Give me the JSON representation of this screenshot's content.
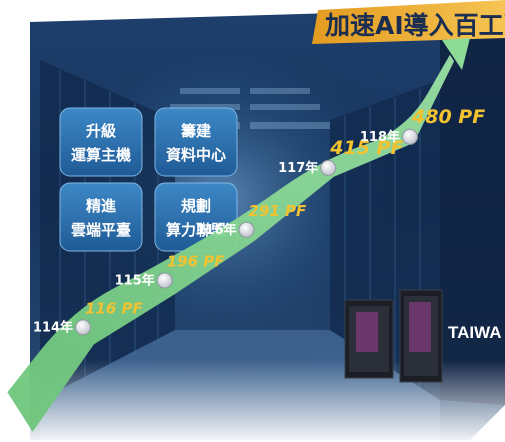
{
  "title": "加速AI導入百工百業",
  "brand_text": "TAIWA",
  "tiles": [
    {
      "line1": "升級",
      "line2": "運算主機"
    },
    {
      "line1": "籌建",
      "line2": "資料中心"
    },
    {
      "line1": "精進",
      "line2": "雲端平臺"
    },
    {
      "line1": "規劃",
      "line2": "算力聯盟"
    }
  ],
  "chart_data": {
    "type": "line",
    "title": "",
    "xlabel": "",
    "ylabel": "",
    "unit": "PF",
    "categories": [
      "114年",
      "115年",
      "116年",
      "117年",
      "118年"
    ],
    "values": [
      116,
      196,
      291,
      415,
      480
    ],
    "labels": [
      "116 PF",
      "196 PF",
      "291 PF",
      "415 PF",
      "480 PF"
    ],
    "line_color": "#7fd188",
    "label_color": "#f2c230",
    "grid": false,
    "legend": "none"
  }
}
